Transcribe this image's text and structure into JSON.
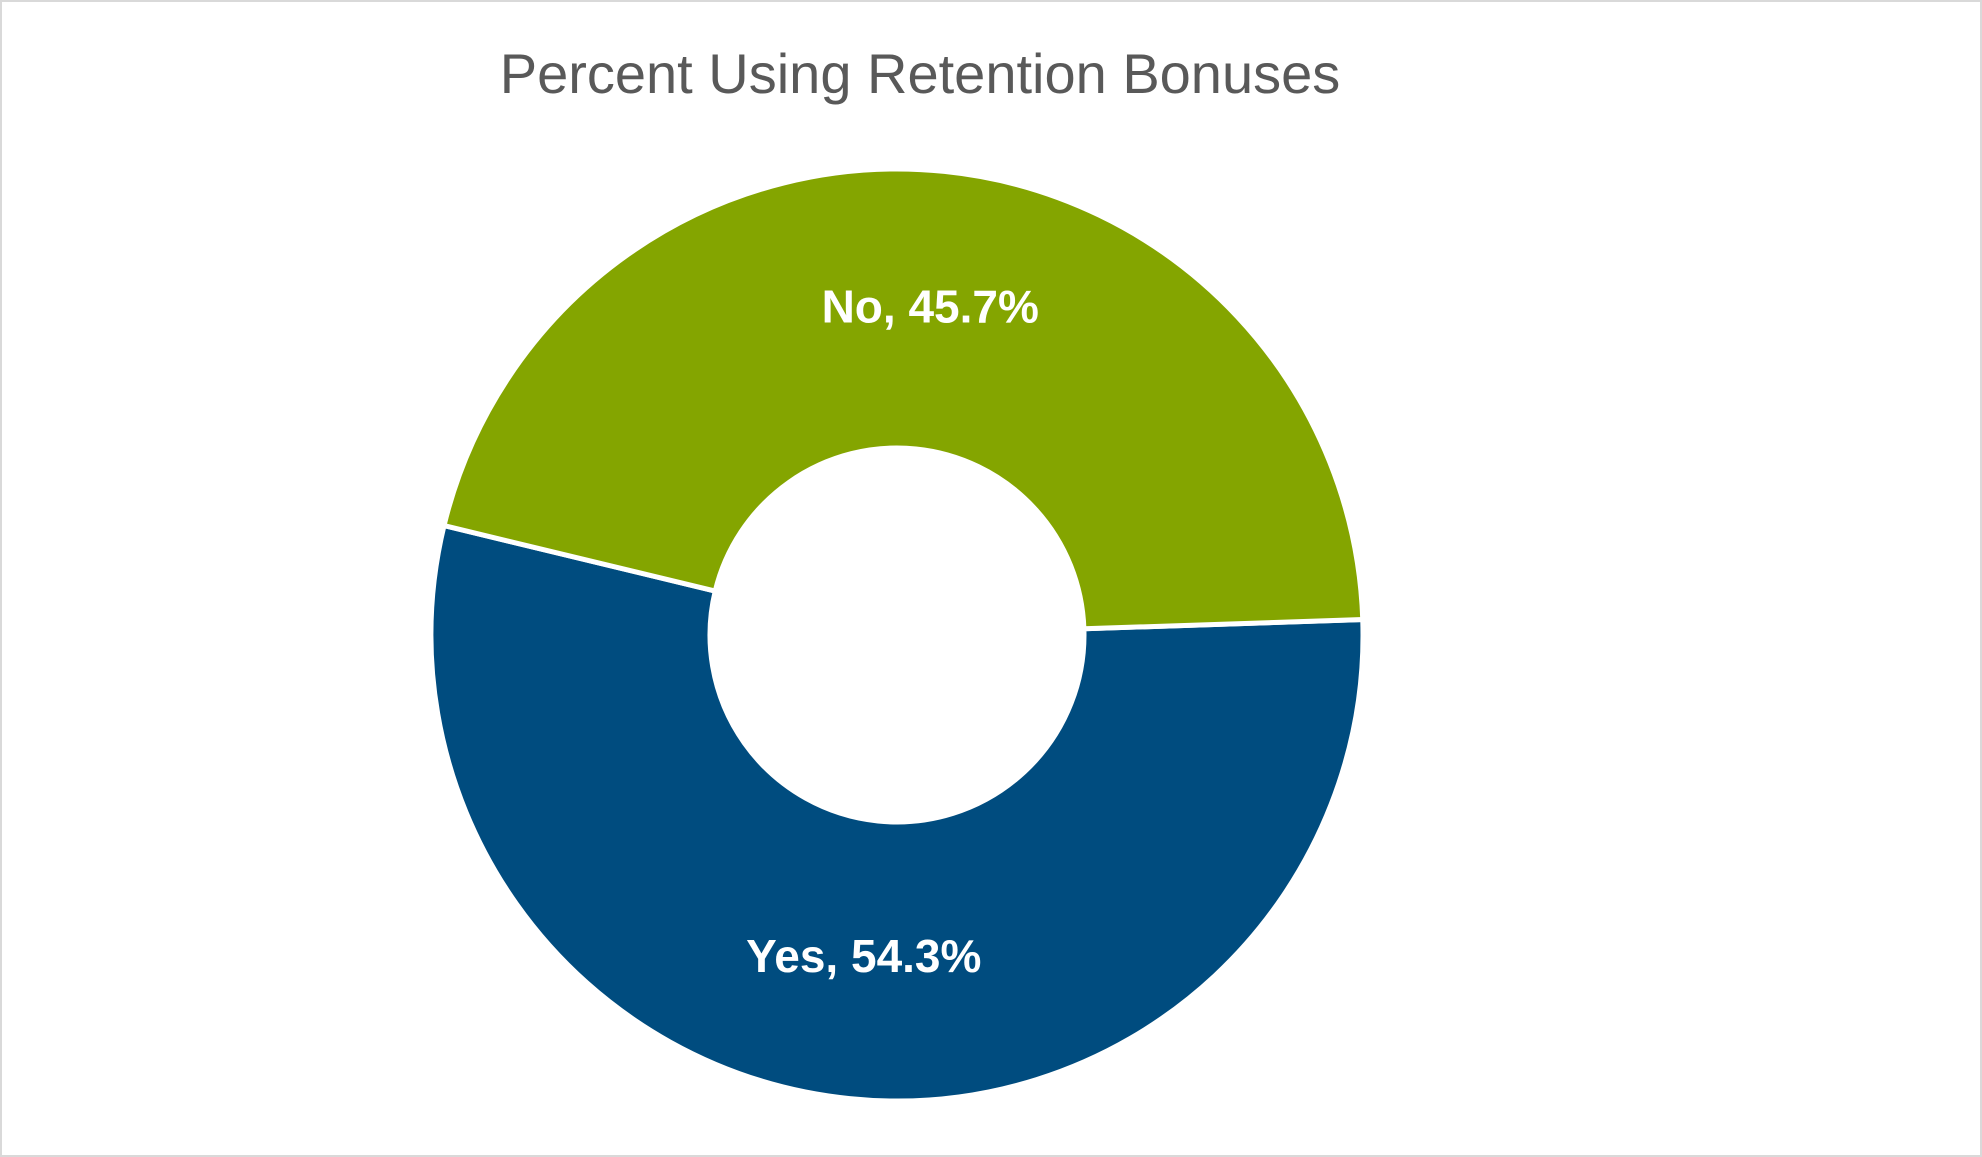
{
  "chart_data": {
    "type": "donut",
    "title": "Percent Using Retention Bonuses",
    "categories": [
      "Yes",
      "No"
    ],
    "values": [
      54.3,
      45.7
    ],
    "value_labels": [
      "Yes, 54.3%",
      "No, 45.7%"
    ],
    "colors": [
      "#004c7f",
      "#84a500"
    ]
  }
}
